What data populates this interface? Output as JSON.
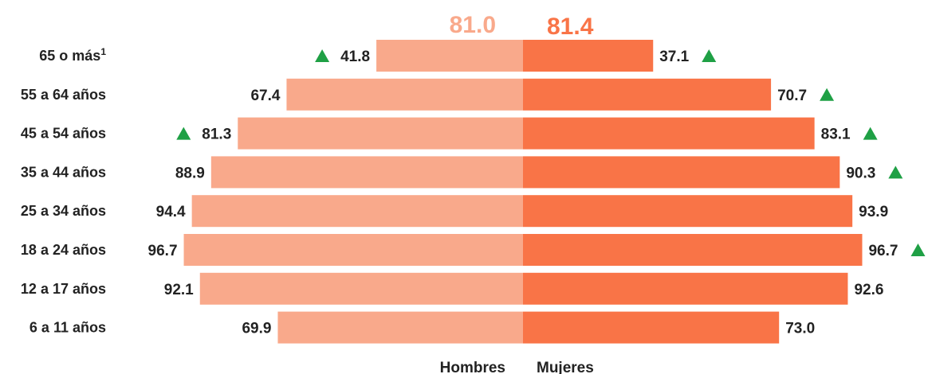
{
  "chart_data": {
    "type": "bar",
    "orientation": "horizontal-diverging",
    "categories": [
      "65 o más",
      "55 a 64 años",
      "45 a 54 años",
      "35 a 44 años",
      "25 a 34 años",
      "18 a 24 años",
      "12 a 17 años",
      "6 a 11 años"
    ],
    "category_superscripts": [
      "1",
      "",
      "",
      "",
      "",
      "",
      "",
      ""
    ],
    "series": [
      {
        "name": "Hombres",
        "values": [
          41.8,
          67.4,
          81.3,
          88.9,
          94.4,
          96.7,
          92.1,
          69.9
        ],
        "total": 81.0,
        "color": "#F9A98B",
        "increase_marker": [
          true,
          false,
          true,
          false,
          false,
          false,
          false,
          false
        ]
      },
      {
        "name": "Mujeres",
        "values": [
          37.1,
          70.7,
          83.1,
          90.3,
          93.9,
          96.7,
          92.6,
          73.0
        ],
        "total": 81.4,
        "color": "#F97447",
        "increase_marker": [
          true,
          true,
          true,
          true,
          false,
          true,
          false,
          false
        ]
      }
    ],
    "totals_text": [
      "81.0",
      "81.4"
    ],
    "value_format_decimals": 1,
    "xlim": [
      0,
      100
    ],
    "marker_color": "#1FA045",
    "marker_icon": "triangle-up-icon",
    "grid": false,
    "legend": "bottom-center"
  }
}
